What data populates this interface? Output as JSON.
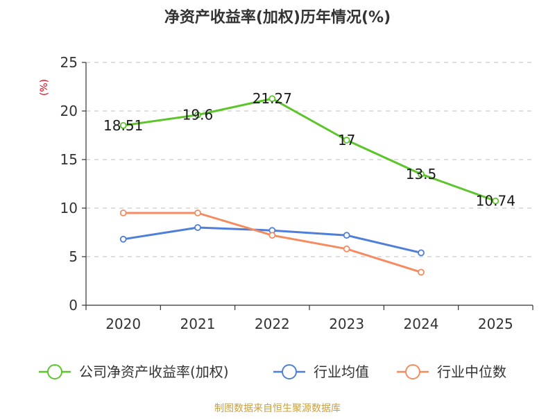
{
  "chart_data": {
    "type": "line",
    "title": "净资产收益率(加权)历年情况(%)",
    "ylabel": "(%)",
    "xlabel": "",
    "categories": [
      "2020",
      "2021",
      "2022",
      "2023",
      "2024",
      "2025"
    ],
    "ylim": [
      0,
      25
    ],
    "yticks": [
      0,
      5,
      10,
      15,
      20,
      25
    ],
    "grid": true,
    "legend_position": "bottom",
    "series": [
      {
        "name": "公司净资产收益率(加权)",
        "color": "#5cc52a",
        "values": [
          18.51,
          19.6,
          21.27,
          17,
          13.5,
          10.74
        ],
        "labels": [
          "18.51",
          "19.6",
          "21.27",
          "17",
          "13.5",
          "10.74"
        ],
        "show_labels": true
      },
      {
        "name": "行业均值",
        "color": "#4f7fd8",
        "values": [
          6.8,
          8.0,
          7.7,
          7.2,
          5.4,
          null
        ],
        "show_labels": false
      },
      {
        "name": "行业中位数",
        "color": "#f58b5e",
        "values": [
          9.5,
          9.5,
          7.2,
          5.8,
          3.4,
          null
        ],
        "show_labels": false
      }
    ],
    "source": "制图数据来自恒生聚源数据库"
  }
}
